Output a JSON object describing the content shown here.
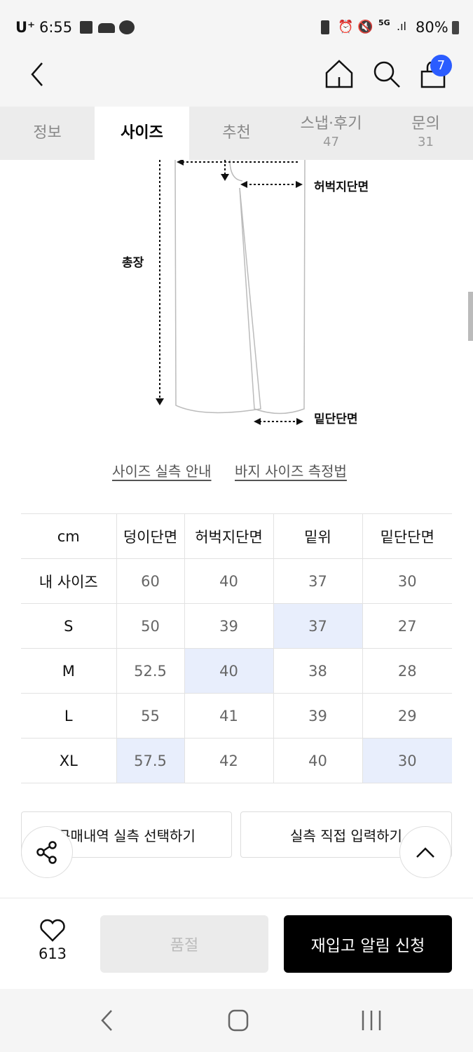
{
  "status_bar": {
    "carrier": "U⁺",
    "time": "6:55",
    "battery": "80%",
    "network": "5G"
  },
  "header": {
    "cart_count": "7",
    "icons": [
      "back-icon",
      "home-icon",
      "search-icon",
      "bag-icon"
    ]
  },
  "tabs": [
    {
      "label": "정보"
    },
    {
      "label": "사이즈"
    },
    {
      "label": "추천"
    },
    {
      "label": "스냅·후기",
      "count": "47"
    },
    {
      "label": "문의",
      "count": "31"
    }
  ],
  "diagram": {
    "labels": {
      "thigh": "허벅지단면",
      "length": "총장",
      "hem": "밑단단면"
    }
  },
  "links": {
    "size_guide": "사이즈 실측 안내",
    "measure": "바지 사이즈 측정법"
  },
  "size_table": {
    "headers": [
      "cm",
      "덩이단면",
      "허벅지단면",
      "밑위",
      "밑단단면"
    ],
    "rows": [
      [
        "내 사이즈",
        "60",
        "40",
        "37",
        "30"
      ],
      [
        "S",
        "50",
        "39",
        "37",
        "27"
      ],
      [
        "M",
        "52.5",
        "40",
        "38",
        "28"
      ],
      [
        "L",
        "55",
        "41",
        "39",
        "29"
      ],
      [
        "XL",
        "57.5",
        "42",
        "40",
        "30"
      ]
    ],
    "highlight_color": "#e8eefc"
  },
  "actions": {
    "select_history": "구매내역 실측 선택하기",
    "direct_input": "실측 직접 입력하기"
  },
  "bottom": {
    "likes": "613",
    "soldout": "품절",
    "restock": "재입고 알림 신청"
  },
  "accent": "#2b5cff"
}
